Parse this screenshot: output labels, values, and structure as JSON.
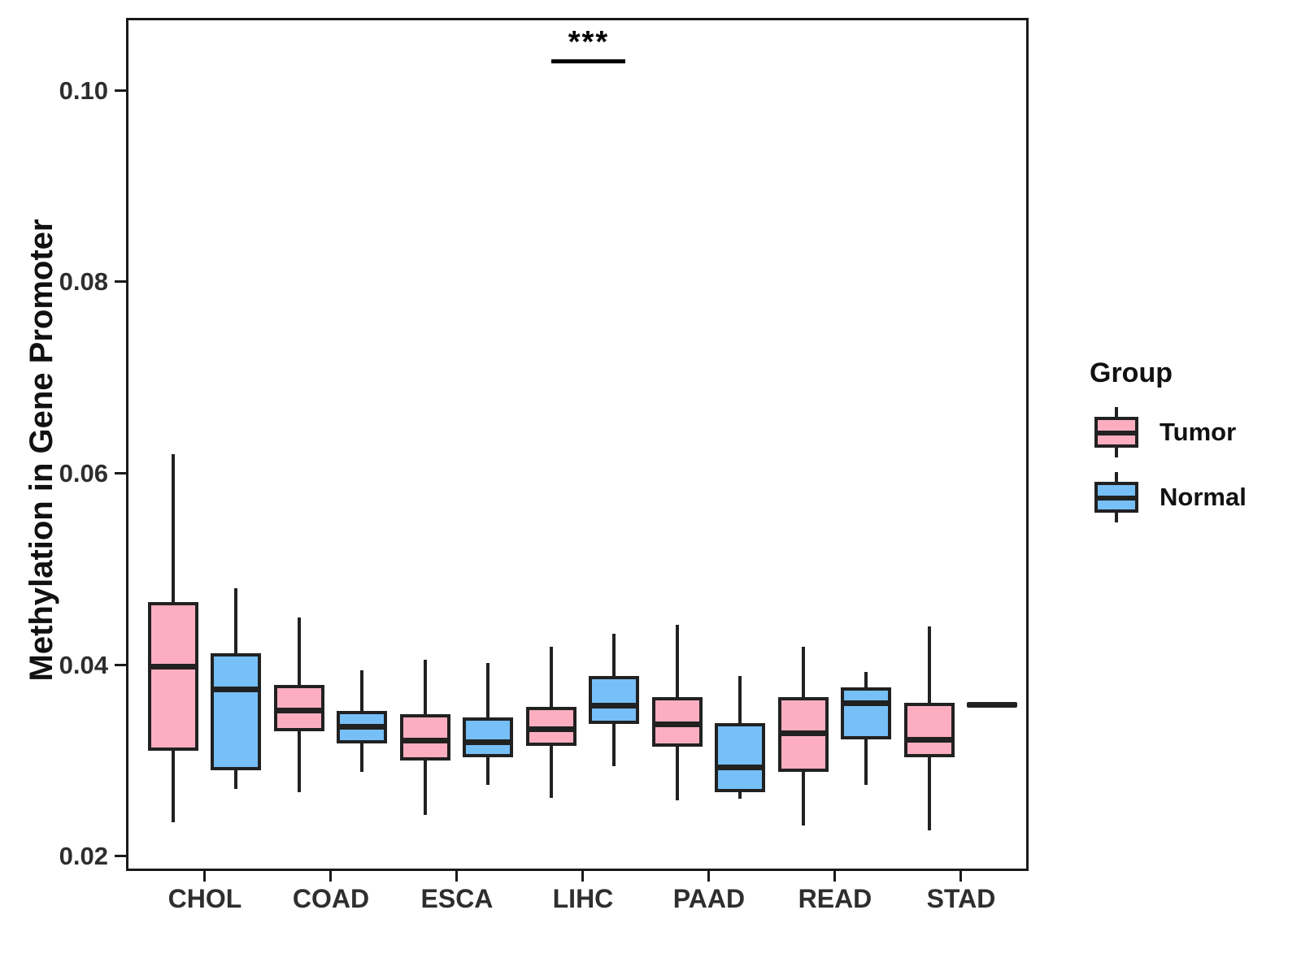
{
  "chart_data": {
    "type": "grouped_boxplot",
    "title": "",
    "xlabel": "",
    "ylabel": "Methylation in Gene Promoter",
    "ylim": [
      0.0187,
      0.1073
    ],
    "yticks": [
      0.02,
      0.04,
      0.06,
      0.08,
      0.1
    ],
    "ytick_labels": [
      "0.02",
      "0.04",
      "0.06",
      "0.08",
      "0.10"
    ],
    "categories": [
      "CHOL",
      "COAD",
      "ESCA",
      "LIHC",
      "PAAD",
      "READ",
      "STAD"
    ],
    "grid": false,
    "legend_position": "right",
    "series": [
      {
        "name": "Tumor",
        "color": "#FCAEC0",
        "boxes": [
          {
            "low": 0.0235,
            "q1": 0.031,
            "median": 0.04,
            "q3": 0.0465,
            "high": 0.062
          },
          {
            "low": 0.0267,
            "q1": 0.033,
            "median": 0.0354,
            "q3": 0.0379,
            "high": 0.0449
          },
          {
            "low": 0.0243,
            "q1": 0.03,
            "median": 0.0322,
            "q3": 0.0348,
            "high": 0.0405
          },
          {
            "low": 0.0261,
            "q1": 0.0315,
            "median": 0.0334,
            "q3": 0.0356,
            "high": 0.0419
          },
          {
            "low": 0.0258,
            "q1": 0.0314,
            "median": 0.0339,
            "q3": 0.0366,
            "high": 0.0442
          },
          {
            "low": 0.0232,
            "q1": 0.0288,
            "median": 0.033,
            "q3": 0.0366,
            "high": 0.0419
          },
          {
            "low": 0.0227,
            "q1": 0.0303,
            "median": 0.0323,
            "q3": 0.036,
            "high": 0.044
          }
        ]
      },
      {
        "name": "Normal",
        "color": "#76BFF7",
        "boxes": [
          {
            "low": 0.027,
            "q1": 0.029,
            "median": 0.0376,
            "q3": 0.0412,
            "high": 0.048
          },
          {
            "low": 0.0288,
            "q1": 0.0318,
            "median": 0.0337,
            "q3": 0.0352,
            "high": 0.0394
          },
          {
            "low": 0.0274,
            "q1": 0.0303,
            "median": 0.0321,
            "q3": 0.0345,
            "high": 0.0402
          },
          {
            "low": 0.0294,
            "q1": 0.0338,
            "median": 0.0359,
            "q3": 0.0388,
            "high": 0.0432
          },
          {
            "low": 0.026,
            "q1": 0.0267,
            "median": 0.0294,
            "q3": 0.0339,
            "high": 0.0388
          },
          {
            "low": 0.0274,
            "q1": 0.0322,
            "median": 0.0361,
            "q3": 0.0376,
            "high": 0.0392
          },
          {
            "low": null,
            "q1": null,
            "median": 0.0358,
            "q3": null,
            "high": null
          }
        ]
      }
    ],
    "significance": {
      "label": "***",
      "category": "LIHC",
      "bar_value": 0.1032
    },
    "legend": {
      "title": "Group",
      "entries": [
        "Tumor",
        "Normal"
      ]
    }
  }
}
